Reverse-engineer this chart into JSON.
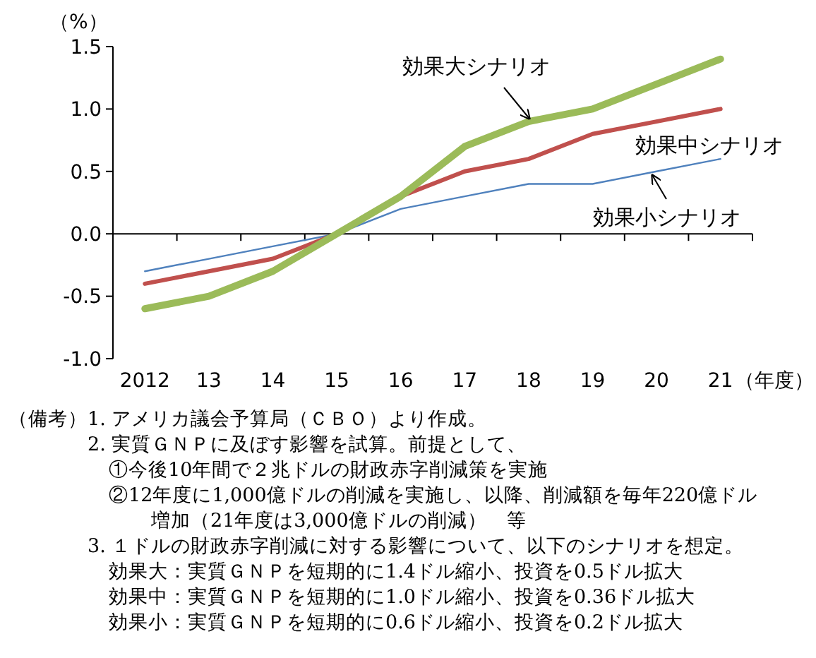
{
  "chart_data": {
    "type": "line",
    "ylabel": "（%）",
    "xlabel": "（年度）",
    "categories": [
      "2012",
      "13",
      "14",
      "15",
      "16",
      "17",
      "18",
      "19",
      "20",
      "21"
    ],
    "series": [
      {
        "name": "効果大シナリオ",
        "color": "#9bbb59",
        "values": [
          -0.6,
          -0.5,
          -0.3,
          0,
          0.3,
          0.7,
          0.9,
          1.0,
          1.2,
          1.4
        ]
      },
      {
        "name": "効果中シナリオ",
        "color": "#c0504d",
        "values": [
          -0.4,
          -0.3,
          -0.2,
          0,
          0.3,
          0.5,
          0.6,
          0.8,
          0.9,
          1.0
        ]
      },
      {
        "name": "効果小シナリオ",
        "color": "#4f81bd",
        "values": [
          -0.3,
          -0.2,
          -0.1,
          0,
          0.2,
          0.3,
          0.4,
          0.4,
          0.5,
          0.6
        ]
      }
    ],
    "ylim": [
      -1.0,
      1.5
    ],
    "yticks": [
      {
        "value": -1.0,
        "label": "-1.0"
      },
      {
        "value": -0.5,
        "label": "-0.5"
      },
      {
        "value": 0,
        "label": "0.0"
      },
      {
        "value": 0.5,
        "label": "0.5"
      },
      {
        "value": 1.0,
        "label": "1.0"
      },
      {
        "value": 1.5,
        "label": "1.5"
      }
    ],
    "annotations": [
      "（備考）",
      "1. アメリカ議会予算局（ＣＢＯ）より作成。",
      "2. 実質ＧＮＰに及ぼす影響を試算。前提として、",
      "①今後10年間で２兆ドルの財政赤字削減策を実施",
      "②12年度に1,000億ドルの削減を実施し、以降、削減額を毎年220億ドル",
      "増加（21年度は3,000億ドルの削減）　等",
      "3. １ドルの財政赤字削減に対する影響について、以下のシナリオを想定。",
      "効果大：実質ＧＮＰを短期的に1.4ドル縮小、投資を0.5ドル拡大",
      "効果中：実質ＧＮＰを短期的に1.0ドル縮小、投資を0.36ドル拡大",
      "効果小：実質ＧＮＰを短期的に0.6ドル縮小、投資を0.2ドル拡大"
    ]
  }
}
